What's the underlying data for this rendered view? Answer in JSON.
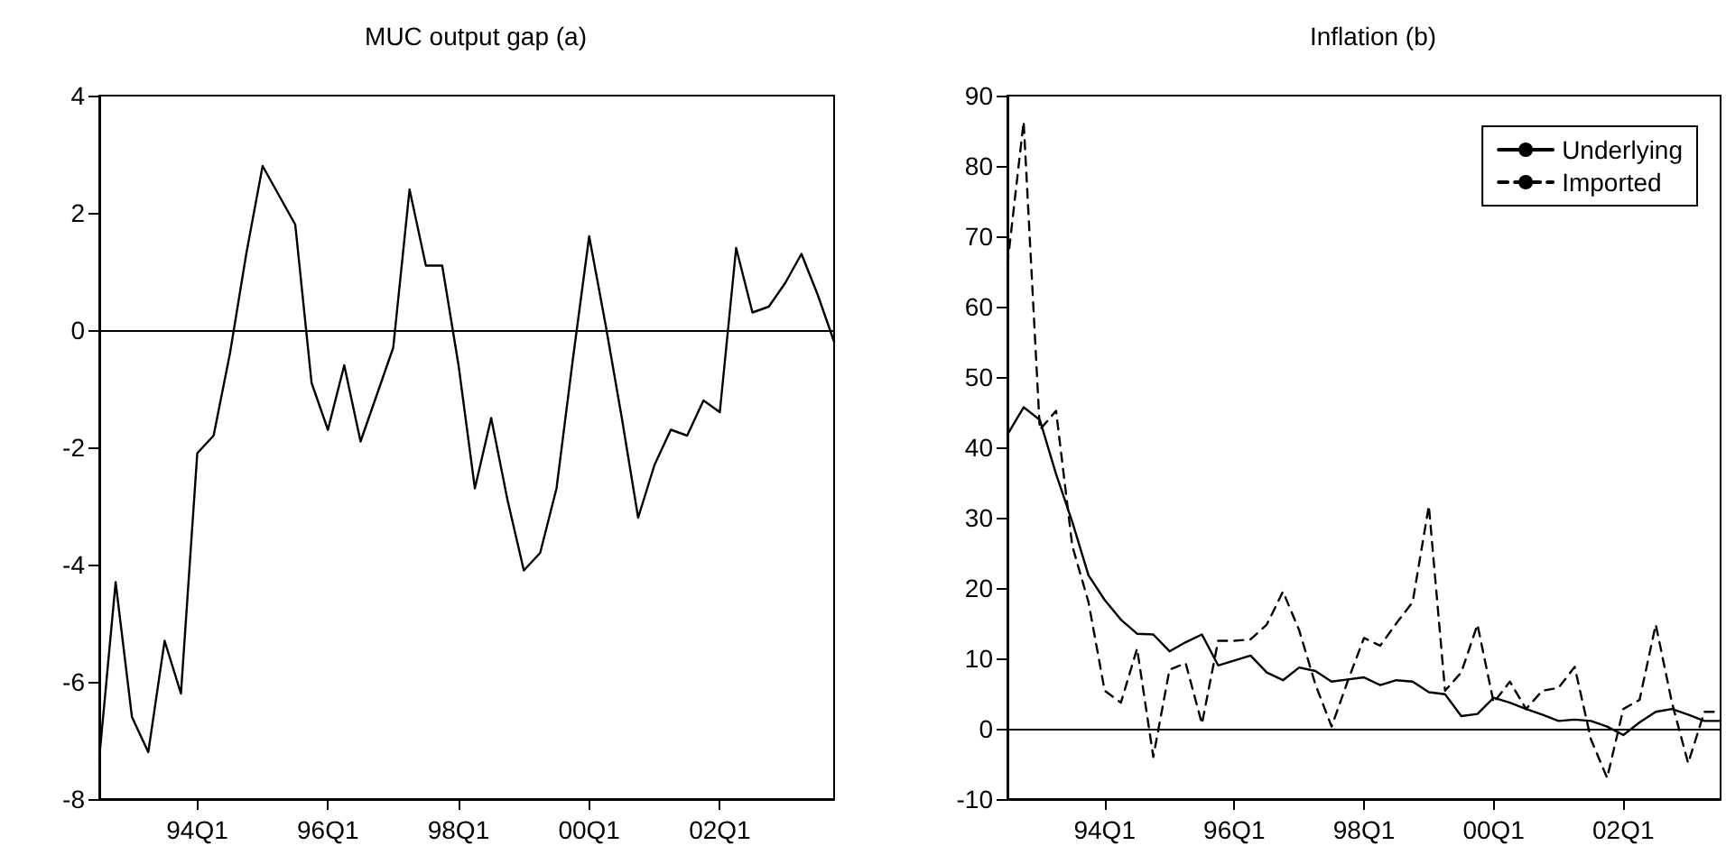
{
  "chart_data": [
    {
      "type": "line",
      "title": "MUC output gap (a)",
      "categories": [
        null,
        null,
        null,
        null,
        null,
        null,
        "94Q1",
        null,
        null,
        null,
        null,
        null,
        null,
        null,
        "96Q1",
        null,
        null,
        null,
        null,
        null,
        null,
        null,
        "98Q1",
        null,
        null,
        null,
        null,
        null,
        null,
        null,
        "00Q1",
        null,
        null,
        null,
        null,
        null,
        null,
        null,
        "02Q1",
        null,
        null,
        null,
        null,
        null,
        null,
        null
      ],
      "series": [
        {
          "color": "#000000",
          "line_style": "solid",
          "values": [
            -7.3,
            -4.3,
            -6.6,
            -7.2,
            -5.3,
            -6.2,
            -2.1,
            -1.8,
            -0.4,
            1.3,
            2.8,
            2.3,
            1.8,
            -0.9,
            -1.7,
            -0.6,
            -1.9,
            -1.1,
            -0.3,
            2.4,
            1.1,
            1.1,
            -0.6,
            -2.7,
            -1.5,
            -2.9,
            -4.1,
            -3.8,
            -2.7,
            -0.5,
            1.6,
            0.1,
            -1.5,
            -3.2,
            -2.3,
            -1.7,
            -1.8,
            -1.2,
            -1.4,
            1.4,
            0.3,
            0.4,
            0.8,
            1.3,
            0.6,
            -0.2
          ]
        }
      ],
      "ylim": [
        -8,
        4
      ],
      "yticks": [
        -8,
        -6,
        -4,
        -2,
        0,
        2,
        4
      ],
      "ref_lines": [
        {
          "axis": "y",
          "value": 0
        }
      ],
      "grid": false,
      "legend": false,
      "marker": "none"
    },
    {
      "type": "line",
      "title": "Inflation (b)",
      "categories": [
        null,
        null,
        null,
        null,
        null,
        null,
        "94Q1",
        null,
        null,
        null,
        null,
        null,
        null,
        null,
        "96Q1",
        null,
        null,
        null,
        null,
        null,
        null,
        null,
        "98Q1",
        null,
        null,
        null,
        null,
        null,
        null,
        null,
        "00Q1",
        null,
        null,
        null,
        null,
        null,
        null,
        null,
        "02Q1",
        null,
        null,
        null,
        null,
        null,
        null
      ],
      "series": [
        {
          "name": "Underlying",
          "color": "#000000",
          "line_style": "solid",
          "values": [
            41.8,
            45.7,
            43.9,
            36.2,
            29.4,
            21.8,
            18.3,
            15.5,
            13.5,
            13.4,
            11,
            12.3,
            13.4,
            9,
            9.7,
            10.4,
            8,
            6.9,
            8.7,
            8.2,
            6.7,
            7,
            7.3,
            6.2,
            6.9,
            6.7,
            5.2,
            4.9,
            1.8,
            2.1,
            4.4,
            3.7,
            2.8,
            2,
            1.1,
            1.3,
            1.1,
            0.3,
            -0.9,
            0.9,
            2.4,
            2.8,
            2,
            1.1,
            1.1
          ]
        },
        {
          "name": "Imported",
          "color": "#000000",
          "line_style": "dashed",
          "values": [
            66,
            86.3,
            42.5,
            45.2,
            26,
            18,
            5.4,
            3.7,
            11.4,
            -4,
            8.4,
            9.3,
            0.7,
            12.5,
            12.5,
            12.7,
            14.8,
            19.5,
            14,
            6.3,
            0.3,
            6.8,
            12.9,
            11.8,
            15,
            18,
            31.7,
            5.4,
            8,
            14.8,
            3.7,
            6.7,
            2.8,
            5.4,
            5.8,
            8.8,
            -1.5,
            -7,
            2.8,
            4.1,
            14.8,
            3.7,
            -4.9,
            2.4,
            2.4
          ]
        }
      ],
      "ylim": [
        -10,
        90
      ],
      "yticks": [
        -10,
        0,
        10,
        20,
        30,
        40,
        50,
        60,
        70,
        80,
        90
      ],
      "ref_lines": [
        {
          "axis": "y",
          "value": 0
        }
      ],
      "grid": false,
      "legend": "top right",
      "marker": "none"
    }
  ]
}
